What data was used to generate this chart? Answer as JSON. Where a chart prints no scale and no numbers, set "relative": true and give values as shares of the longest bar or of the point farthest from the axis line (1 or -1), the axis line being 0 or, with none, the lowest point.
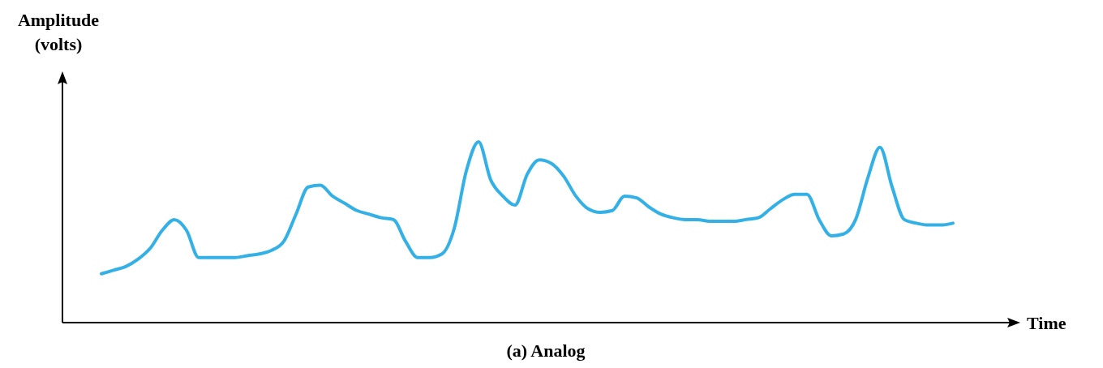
{
  "chart_data": {
    "type": "line",
    "relative": true,
    "title": "(a) Analog",
    "xlabel": "Time",
    "ylabel": "Amplitude (volts)",
    "categories": [
      null,
      null,
      null,
      null,
      null,
      null,
      null,
      null,
      null,
      null,
      null,
      null,
      null,
      null,
      null,
      null,
      null,
      null,
      null,
      null,
      null,
      null,
      null,
      null,
      null,
      null,
      null,
      null,
      null,
      null,
      null,
      null,
      null,
      null,
      null,
      null,
      null,
      null,
      null,
      null,
      null,
      null,
      null,
      null,
      null,
      null,
      null,
      null,
      null,
      null,
      null,
      null,
      null,
      null,
      null,
      null,
      null,
      null,
      null,
      null,
      null,
      null,
      null,
      null,
      null,
      null,
      null,
      null,
      null,
      null,
      null
    ],
    "series": [
      {
        "color": "#33b0e6",
        "values": [
          0.27,
          0.29,
          0.31,
          0.35,
          0.41,
          0.51,
          0.57,
          0.51,
          0.36,
          0.36,
          0.36,
          0.36,
          0.37,
          0.38,
          0.4,
          0.45,
          0.6,
          0.75,
          0.76,
          0.7,
          0.66,
          0.62,
          0.6,
          0.58,
          0.57,
          0.45,
          0.36,
          0.36,
          0.38,
          0.52,
          0.84,
          1,
          0.79,
          0.7,
          0.65,
          0.82,
          0.9,
          0.88,
          0.81,
          0.7,
          0.63,
          0.61,
          0.62,
          0.7,
          0.69,
          0.64,
          0.6,
          0.58,
          0.57,
          0.57,
          0.56,
          0.56,
          0.56,
          0.57,
          0.58,
          0.63,
          0.68,
          0.71,
          0.71,
          0.57,
          0.48,
          0.49,
          0.57,
          0.8,
          0.97,
          0.75,
          0.57,
          0.55,
          0.54,
          0.54,
          0.55
        ]
      }
    ],
    "marker": "none"
  }
}
